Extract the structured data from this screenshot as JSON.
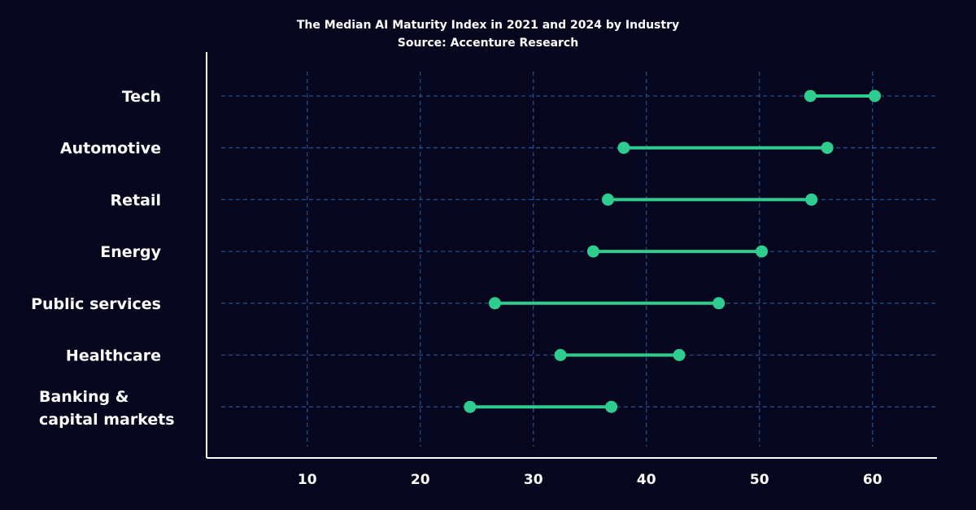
{
  "chart_data": {
    "type": "dumbbell",
    "title": "The Median AI Maturity Index in 2021 and 2024 by Industry",
    "subtitle": "Source: Accenture Research",
    "categories": [
      [
        "Tech"
      ],
      [
        "Automotive"
      ],
      [
        "Retail"
      ],
      [
        "Energy"
      ],
      [
        "Public services"
      ],
      [
        "Healthcare"
      ],
      [
        "Banking &",
        "capital markets"
      ]
    ],
    "series": [
      {
        "values": [
          54.5,
          38.0,
          36.6,
          35.3,
          26.6,
          32.4,
          24.4
        ]
      },
      {
        "values": [
          60.2,
          56.0,
          54.6,
          50.2,
          46.4,
          42.9,
          36.9
        ]
      }
    ],
    "xticks": [
      10,
      20,
      30,
      40,
      50,
      60
    ],
    "xlim": [
      1.1,
      65.7
    ],
    "grid": true,
    "colors": {
      "background": "#07061f",
      "marker": "#2ecc8f",
      "grid": "#1f4f8a",
      "axis": "#ffffff",
      "text": "#ffffff"
    }
  }
}
